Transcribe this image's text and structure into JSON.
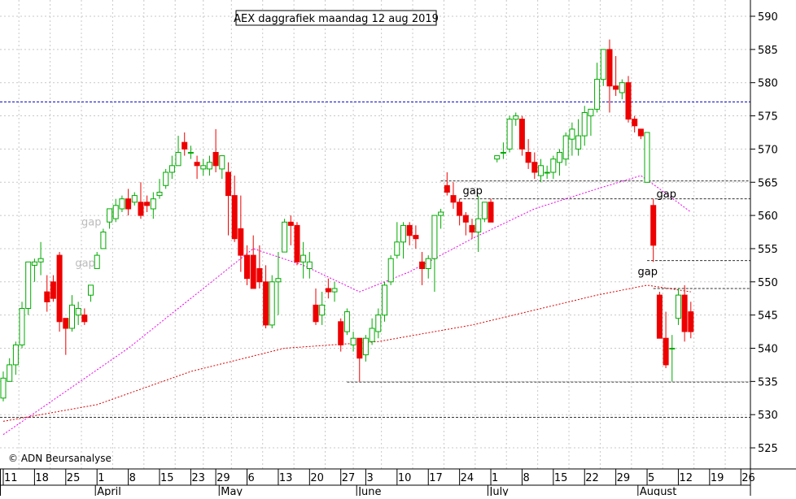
{
  "chart_data": {
    "type": "candlestick",
    "title": "AEX daggrafiek maandag 12 aug 2019",
    "copyright": "© ADN Beursanalyse",
    "y_axis": {
      "min": 521,
      "max": 593,
      "ticks": [
        525,
        530,
        535,
        540,
        545,
        550,
        555,
        560,
        565,
        570,
        575,
        580,
        585,
        590
      ]
    },
    "x_axis": {
      "day_ticks": [
        "11",
        "18",
        "25",
        "1",
        "8",
        "15",
        "23",
        "29",
        "6",
        "13",
        "20",
        "27",
        "3",
        "10",
        "17",
        "24",
        "1",
        "8",
        "15",
        "22",
        "29",
        "5",
        "12",
        "19",
        "26"
      ],
      "day_tick_indices": [
        0,
        5,
        10,
        15,
        20,
        25,
        30,
        34,
        39,
        44,
        49,
        54,
        58,
        63,
        68,
        73,
        78,
        83,
        88,
        93,
        98,
        103,
        108,
        113,
        118
      ],
      "months": [
        {
          "label": "April",
          "index": 15
        },
        {
          "label": "May",
          "index": 34.8
        },
        {
          "label": "June",
          "index": 56.8
        },
        {
          "label": "July",
          "index": 77.8
        },
        {
          "label": "August",
          "index": 101.8
        }
      ],
      "gridline_indices": [
        2.5,
        7.5,
        12.5,
        17.5,
        22.5,
        27.5,
        32,
        36.5,
        41.5,
        46.5,
        51.5,
        56,
        60.5,
        65.5,
        70.5,
        75.5,
        80.5,
        85.5,
        90.5,
        95.5,
        100.5,
        105.5,
        110.5,
        115.5
      ],
      "last_index": 119
    },
    "candles": [
      [
        532.5,
        536.5,
        532,
        535.5
      ],
      [
        535,
        538.5,
        535,
        537.5
      ],
      [
        537.5,
        541,
        536,
        540.5
      ],
      [
        540.5,
        547,
        540,
        546
      ],
      [
        546,
        553,
        545,
        553
      ],
      [
        552.5,
        553.5,
        550,
        553
      ],
      [
        553,
        556,
        551,
        553.5
      ],
      [
        548.5,
        551,
        545.5,
        547
      ],
      [
        550,
        551,
        547,
        547.5
      ],
      [
        554,
        554.5,
        542.5,
        544
      ],
      [
        544.5,
        544.5,
        539,
        543
      ],
      [
        543,
        548,
        542.5,
        546.5
      ],
      [
        545,
        547,
        543.5,
        546
      ],
      [
        545,
        546,
        543.5,
        544
      ],
      [
        548,
        549.5,
        547,
        549.5
      ],
      [
        552,
        554.5,
        552,
        554
      ],
      [
        555,
        558,
        555,
        557.5
      ],
      [
        559,
        561,
        558,
        561
      ],
      [
        559.5,
        562.5,
        559,
        561.5
      ],
      [
        561,
        563,
        560.5,
        562.5
      ],
      [
        562.5,
        564,
        560,
        561
      ],
      [
        562,
        563.5,
        561.5,
        563
      ],
      [
        562,
        565,
        559.5,
        560
      ],
      [
        562,
        563,
        560.5,
        561.5
      ],
      [
        561,
        563.5,
        559.5,
        562.5
      ],
      [
        563,
        565.5,
        562.5,
        563.5
      ],
      [
        564.5,
        567,
        564,
        566.5
      ],
      [
        566.5,
        569,
        565.5,
        567.5
      ],
      [
        567.5,
        572,
        567.5,
        569.5
      ],
      [
        571,
        572.5,
        569,
        570
      ],
      [
        569.5,
        570.5,
        568.5,
        569.5
      ],
      [
        568,
        569,
        565.5,
        567.5
      ],
      [
        567,
        568.5,
        566,
        567.5
      ],
      [
        567,
        569,
        566,
        568
      ],
      [
        569.5,
        573,
        566.5,
        567.5
      ],
      [
        567,
        569,
        565.5,
        569
      ],
      [
        566.5,
        568,
        557,
        563
      ],
      [
        563,
        566,
        556,
        556.5
      ],
      [
        558,
        563,
        551.5,
        554
      ],
      [
        554,
        555.5,
        549.5,
        550.5
      ],
      [
        554,
        557,
        549,
        549
      ],
      [
        552,
        555.5,
        549,
        550
      ],
      [
        550,
        552.5,
        543,
        543.5
      ],
      [
        543.5,
        551,
        543,
        550
      ],
      [
        550,
        554.5,
        545,
        550.5
      ],
      [
        554.5,
        559.5,
        554.5,
        559
      ],
      [
        559,
        560,
        555.5,
        558.5
      ],
      [
        558.5,
        559,
        552.5,
        553
      ],
      [
        553,
        556,
        550.5,
        554
      ],
      [
        552,
        554.5,
        550.5,
        553
      ],
      [
        546.5,
        549,
        543.5,
        544
      ],
      [
        545,
        548.5,
        543.5,
        546.5
      ],
      [
        549,
        550.5,
        547.5,
        548.5
      ],
      [
        548.5,
        550,
        547,
        549
      ],
      [
        544,
        544.5,
        539.5,
        540.5
      ],
      [
        542.5,
        546,
        542,
        545.5
      ],
      [
        540.5,
        542.5,
        539.5,
        541.5
      ],
      [
        541.5,
        541.5,
        535,
        538.5
      ],
      [
        539,
        542,
        538,
        541.5
      ],
      [
        541,
        544.5,
        540.5,
        543
      ],
      [
        542.5,
        546,
        541.5,
        545
      ],
      [
        545,
        550,
        544,
        549.5
      ],
      [
        550,
        554,
        549.5,
        553.5
      ],
      [
        554,
        559,
        553.5,
        556
      ],
      [
        556,
        559,
        553.5,
        558.5
      ],
      [
        558.5,
        559,
        555.5,
        557
      ],
      [
        557,
        558.5,
        555,
        556.5
      ],
      [
        553,
        554.5,
        549.5,
        552
      ],
      [
        552,
        554,
        550.5,
        553.5
      ],
      [
        553.5,
        560,
        548.5,
        560
      ],
      [
        560,
        561,
        558,
        560.5
      ],
      [
        564.5,
        566.5,
        563,
        563.5
      ],
      [
        563,
        565,
        561,
        562
      ],
      [
        562,
        562.5,
        558.5,
        560
      ],
      [
        560,
        560.5,
        557,
        559
      ],
      [
        558.5,
        559.5,
        556.5,
        557.5
      ],
      [
        557.5,
        563,
        554.5,
        559.5
      ],
      [
        559.5,
        562,
        559,
        562
      ],
      [
        562,
        562.5,
        559,
        559
      ],
      [
        568.5,
        569,
        568,
        569
      ],
      [
        569.5,
        571,
        568.5,
        569.5
      ],
      [
        570,
        575,
        569.5,
        574.5
      ],
      [
        574.5,
        575.5,
        573.5,
        575
      ],
      [
        574.5,
        575,
        569,
        570
      ],
      [
        569.5,
        571.5,
        567,
        568
      ],
      [
        568,
        569.5,
        565.5,
        566.5
      ],
      [
        566,
        568.5,
        565,
        567.5
      ],
      [
        566.5,
        567.5,
        565.5,
        566.5
      ],
      [
        566.5,
        569,
        565.5,
        568.5
      ],
      [
        568,
        570,
        566,
        569.5
      ],
      [
        568.5,
        572.5,
        567.5,
        572
      ],
      [
        571.5,
        574,
        569,
        573
      ],
      [
        570,
        574.5,
        569,
        572
      ],
      [
        572,
        576.5,
        570.5,
        575.5
      ],
      [
        575,
        576,
        572,
        576
      ],
      [
        576,
        583,
        575.5,
        580.5
      ],
      [
        580.5,
        585,
        579.5,
        585
      ],
      [
        585,
        586.5,
        575.5,
        579.5
      ],
      [
        579.5,
        584,
        578,
        579
      ],
      [
        578.5,
        580.5,
        577.5,
        580
      ],
      [
        580,
        581,
        574,
        574.5
      ],
      [
        574.5,
        575,
        572.5,
        573.5
      ],
      [
        573,
        573,
        571.5,
        572
      ],
      [
        565,
        572.5,
        565,
        572.5
      ],
      [
        561.5,
        562.5,
        553,
        555.5
      ],
      [
        548,
        548.5,
        541.5,
        541.5
      ],
      [
        541.5,
        545.5,
        537,
        537.5
      ],
      [
        540,
        542,
        535,
        540
      ],
      [
        544.5,
        549,
        543.5,
        548
      ],
      [
        548,
        549.5,
        541,
        542.5
      ],
      [
        545.5,
        547,
        541.5,
        542.5
      ]
    ],
    "series": [
      {
        "name": "",
        "color": "#ee00ee",
        "style": "dashed",
        "points": [
          [
            0,
            527
          ],
          [
            20,
            540
          ],
          [
            40,
            555
          ],
          [
            48,
            552.5
          ],
          [
            57,
            548.5
          ],
          [
            65,
            551.5
          ],
          [
            75,
            556.5
          ],
          [
            85,
            561
          ],
          [
            95,
            564
          ],
          [
            102,
            566
          ],
          [
            105,
            564
          ],
          [
            110,
            560.5
          ]
        ]
      },
      {
        "name": "",
        "color": "#dd0000",
        "style": "dashed",
        "points": [
          [
            0,
            529
          ],
          [
            15,
            531.5
          ],
          [
            30,
            536.5
          ],
          [
            45,
            540
          ],
          [
            60,
            541
          ],
          [
            75,
            543.5
          ],
          [
            95,
            548
          ],
          [
            103,
            549.5
          ],
          [
            110,
            548.5
          ]
        ]
      }
    ],
    "horizontal_lines": [
      {
        "value": 577.1,
        "from": 0,
        "to": 119,
        "color": "#0000cc"
      },
      {
        "value": 529.6,
        "from": 0,
        "to": 119,
        "color": "#333333"
      },
      {
        "value": 565.2,
        "from": 70,
        "to": 119,
        "color": "#333333"
      },
      {
        "value": 562.5,
        "from": 73,
        "to": 119,
        "color": "#333333"
      },
      {
        "value": 553.2,
        "from": 103,
        "to": 119,
        "color": "#333333"
      },
      {
        "value": 549,
        "from": 104,
        "to": 119,
        "color": "#333333"
      },
      {
        "value": 534.9,
        "from": 55,
        "to": 119,
        "color": "#333333"
      }
    ],
    "annotations": [
      {
        "text": "gap",
        "x": 73.5,
        "y": 563.2,
        "color": "#000000"
      },
      {
        "text": "gap",
        "x": 104.5,
        "y": 562.7,
        "color": "#000000"
      },
      {
        "text": "gap",
        "x": 101.5,
        "y": 551,
        "color": "#000000"
      },
      {
        "text": "gap",
        "x": 12.5,
        "y": 558.5,
        "color": "#bbbbbb"
      },
      {
        "text": "gap",
        "x": 11.5,
        "y": 552.3,
        "color": "#bbbbbb"
      }
    ],
    "grid": true,
    "colors": {
      "up": "#00aa00",
      "down": "#ee0000",
      "background": "#ffffff"
    }
  }
}
